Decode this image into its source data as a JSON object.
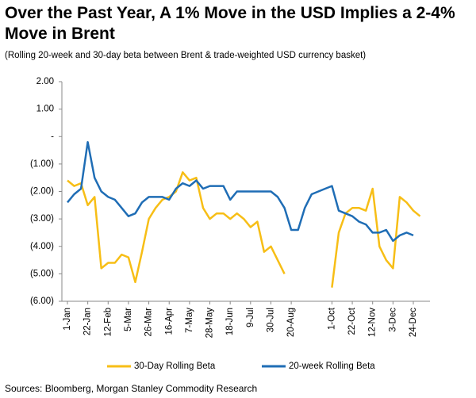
{
  "chart_data": {
    "type": "line",
    "title": "Over the Past Year, A 1% Move in the USD Implies a 2-4% Move in Brent",
    "subtitle": "(Rolling 20-week and 30-day beta between Brent & trade-weighted USD currency basket)",
    "source": "Sources: Bloomberg, Morgan Stanley Commodity Research",
    "categories": [
      "1-Jan",
      null,
      null,
      "22-Jan",
      null,
      null,
      "12-Feb",
      null,
      null,
      "5-Mar",
      null,
      null,
      "26-Mar",
      null,
      null,
      "16-Apr",
      null,
      null,
      "7-May",
      null,
      null,
      "28-May",
      null,
      null,
      "18-Jun",
      null,
      null,
      "9-Jul",
      null,
      null,
      "30-Jul",
      null,
      null,
      "20-Aug",
      null,
      null,
      null,
      null,
      null,
      "1-Oct",
      null,
      null,
      "22-Oct",
      null,
      null,
      "12-Nov",
      null,
      null,
      "3-Dec",
      null,
      null,
      "24-Dec",
      null
    ],
    "series": [
      {
        "name": "30-Day Rolling Beta",
        "color": "#f7be16",
        "values": [
          -1.6,
          -1.8,
          -1.7,
          -2.5,
          -2.2,
          -4.8,
          -4.6,
          -4.6,
          -4.3,
          -4.4,
          -5.3,
          -4.2,
          -3.0,
          -2.6,
          -2.3,
          -2.2,
          -2.0,
          -1.3,
          -1.6,
          -1.5,
          -2.6,
          -3.0,
          -2.8,
          -2.8,
          -3.0,
          -2.8,
          -3.0,
          -3.3,
          -3.1,
          -4.2,
          -4.0,
          -4.5,
          -5.0,
          null,
          null,
          null,
          null,
          null,
          null,
          -5.5,
          -3.5,
          -2.8,
          -2.6,
          -2.6,
          -2.7,
          -1.9,
          -4.0,
          -4.5,
          -4.8,
          -2.2,
          -2.4,
          -2.7,
          -2.9
        ]
      },
      {
        "name": "20-week Rolling Beta",
        "color": "#1f6db5",
        "values": [
          -2.4,
          -2.1,
          -1.9,
          -0.2,
          -1.5,
          -2.0,
          -2.2,
          -2.3,
          -2.6,
          -2.9,
          -2.8,
          -2.4,
          -2.2,
          -2.2,
          -2.2,
          -2.3,
          -1.9,
          -1.7,
          -1.8,
          -1.6,
          -1.9,
          -1.8,
          -1.8,
          -1.8,
          -2.3,
          -2.0,
          -2.0,
          -2.0,
          -2.0,
          -2.0,
          -2.0,
          -2.2,
          -2.6,
          -3.4,
          -3.4,
          -2.6,
          -2.1,
          -2.0,
          -1.9,
          -1.8,
          -2.7,
          -2.8,
          -2.9,
          -3.1,
          -3.2,
          -3.5,
          -3.5,
          -3.4,
          -3.8,
          -3.6,
          -3.5,
          -3.6,
          null
        ]
      }
    ],
    "ylim": [
      -6,
      2
    ],
    "yticks": [
      {
        "value": 2,
        "label": "2.00"
      },
      {
        "value": 1,
        "label": "1.00"
      },
      {
        "value": 0,
        "label": "-"
      },
      {
        "value": -1,
        "label": "(1.00)"
      },
      {
        "value": -2,
        "label": "(2.00)"
      },
      {
        "value": -3,
        "label": "(3.00)"
      },
      {
        "value": -4,
        "label": "(4.00)"
      },
      {
        "value": -5,
        "label": "(5.00)"
      },
      {
        "value": -6,
        "label": "(6.00)"
      }
    ],
    "legend": "bottom"
  }
}
